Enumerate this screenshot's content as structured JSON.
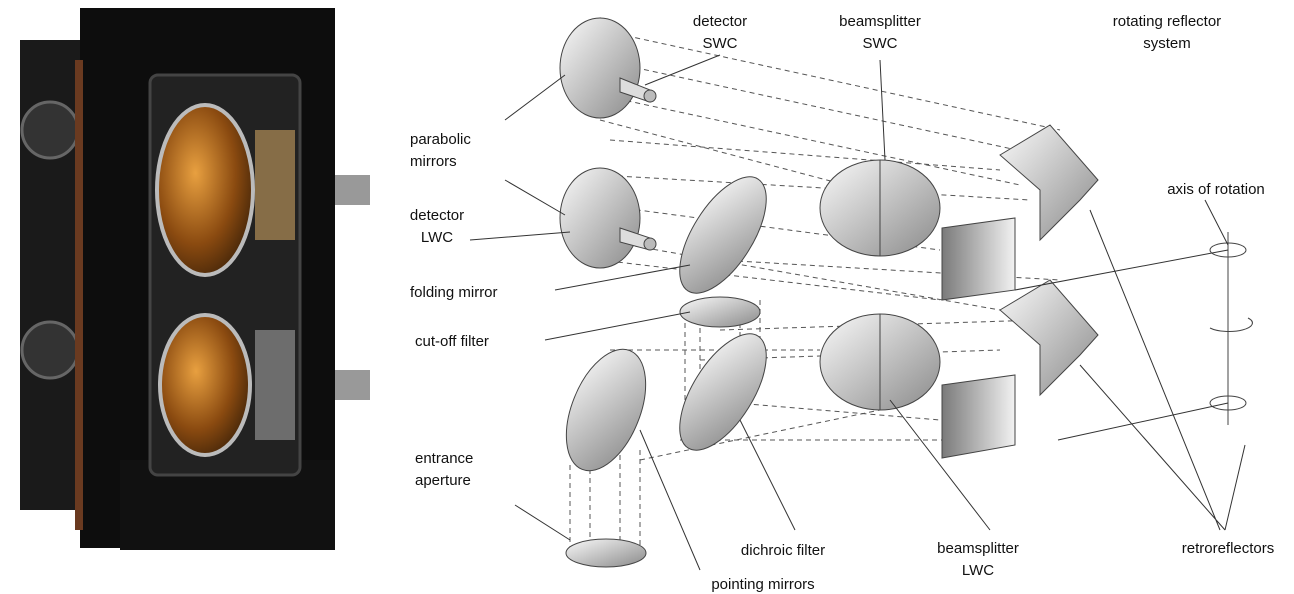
{
  "labels": [
    {
      "lines": [
        "detector",
        "SWC"
      ]
    },
    {
      "lines": [
        "beamsplitter",
        "SWC"
      ]
    },
    {
      "lines": [
        "rotating reflector",
        "system"
      ]
    },
    {
      "lines": [
        "parabolic",
        "mirrors"
      ]
    },
    {
      "lines": [
        "detector",
        "LWC"
      ]
    },
    {
      "lines": [
        "folding mirror"
      ]
    },
    {
      "lines": [
        "cut-off filter"
      ]
    },
    {
      "lines": [
        "axis of rotation"
      ]
    },
    {
      "lines": [
        "entrance",
        "aperture"
      ]
    },
    {
      "lines": [
        "dichroic filter"
      ]
    },
    {
      "lines": [
        "pointing mirrors"
      ]
    },
    {
      "lines": [
        "beamsplitter",
        "LWC"
      ]
    },
    {
      "lines": [
        "retroreflectors"
      ]
    }
  ]
}
